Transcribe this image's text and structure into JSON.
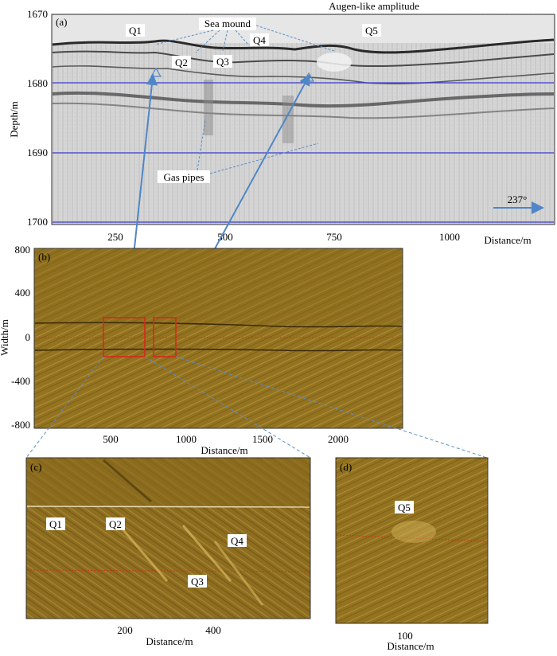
{
  "panel_a": {
    "label": "(a)",
    "title": "Augen-like amplitude",
    "ylabel": "Depth/m",
    "xlabel": "Distance/m",
    "y_ticks": [
      "1670",
      "1680",
      "1690",
      "1700"
    ],
    "x_ticks": [
      "250",
      "500",
      "750",
      "1000"
    ],
    "annotations": {
      "sea_mound": "Sea mound",
      "gas_pipes": "Gas pipes",
      "q1": "Q1",
      "q2": "Q2",
      "q3": "Q3",
      "q4": "Q4",
      "q5": "Q5",
      "heading": "237°"
    }
  },
  "panel_b": {
    "label": "(b)",
    "ylabel": "Width/m",
    "xlabel": "Distance/m",
    "y_ticks": [
      "800",
      "400",
      "0",
      "-400",
      "-800"
    ],
    "x_ticks": [
      "500",
      "1000",
      "1500",
      "2000"
    ]
  },
  "panel_c": {
    "label": "(c)",
    "xlabel": "Distance/m",
    "x_ticks": [
      "200",
      "400"
    ],
    "annotations": {
      "q1": "Q1",
      "q2": "Q2",
      "q3": "Q3",
      "q4": "Q4"
    }
  },
  "panel_d": {
    "label": "(d)",
    "xlabel": "Distance/m",
    "x_ticks": [
      "100"
    ],
    "annotations": {
      "q5": "Q5"
    }
  },
  "colors": {
    "seismic_bg": "#cfcfcf",
    "sonar_bg": "#8a6a1c",
    "sonar_light": "#b89440",
    "callout_red": "#d42a1c",
    "arrow_blue": "#4f86c6",
    "grid_blue": "#3a3acc",
    "dash_blue": "#5a8fc8"
  }
}
